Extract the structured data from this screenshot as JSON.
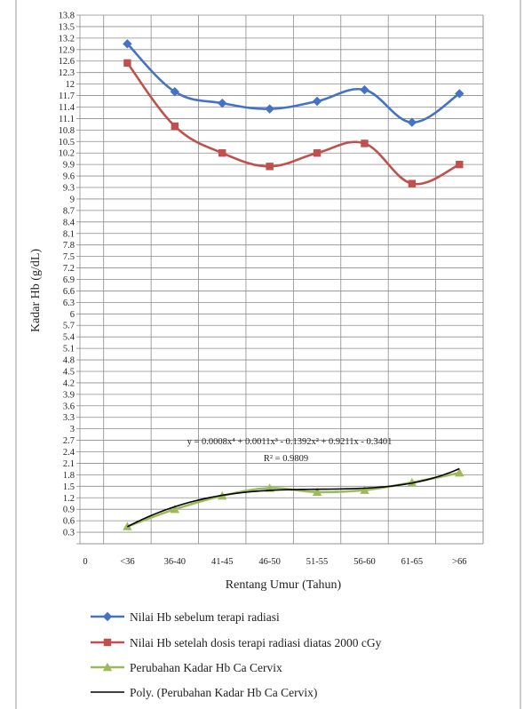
{
  "chart_data": {
    "type": "line",
    "xlabel": "Rentang Umur (Tahun)",
    "ylabel": "Kadar Hb (g/dL)",
    "categories": [
      "<36",
      "36-40",
      "41-45",
      "46-50",
      "51-55",
      "56-60",
      "61-65",
      ">66"
    ],
    "x_origin_label": "0",
    "ylim": [
      0,
      13.8
    ],
    "ystep": 0.3,
    "grid": true,
    "legend_position": "bottom",
    "series": [
      {
        "name": "Nilai Hb sebelum terapi radiasi",
        "color": "#4472c4",
        "marker": "diamond",
        "values": [
          13.05,
          11.8,
          11.5,
          11.35,
          11.55,
          11.85,
          11.0,
          11.75
        ]
      },
      {
        "name": "Nilai Hb setelah dosis terapi radiasi diatas 2000 cGy",
        "color": "#c0504d",
        "marker": "square",
        "values": [
          12.55,
          10.9,
          10.2,
          9.85,
          10.2,
          10.45,
          9.4,
          9.9
        ]
      },
      {
        "name": "Perubahan Kadar Hb Ca Cervix",
        "color": "#9bbb59",
        "marker": "triangle",
        "values": [
          0.45,
          0.9,
          1.25,
          1.45,
          1.35,
          1.4,
          1.6,
          1.85
        ]
      }
    ],
    "trendline": {
      "name": "Poly. (Perubahan Kadar Hb Ca Cervix)",
      "color": "#000000",
      "equation": "y = 0.0008x⁴ + 0.0011x³ - 0.1392x² + 0.9211x - 0.3401",
      "r2_label": "R² = 0.9809",
      "coefficients": [
        0.0008,
        0.0011,
        -0.1392,
        0.9211,
        -0.3401
      ]
    }
  }
}
